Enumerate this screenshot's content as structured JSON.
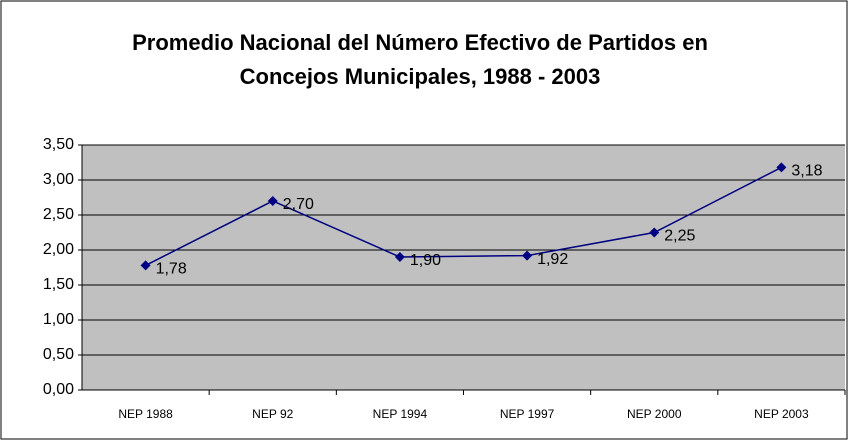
{
  "chart_data": {
    "type": "line",
    "title": "Promedio Nacional del Número Efectivo de Partidos en Concejos Municipales, 1988 - 2003",
    "categories": [
      "NEP 1988",
      "NEP 92",
      "NEP 1994",
      "NEP 1997",
      "NEP  2000",
      "NEP 2003"
    ],
    "series": [
      {
        "color": "#000080",
        "values": [
          1.78,
          2.7,
          1.9,
          1.92,
          2.25,
          3.18
        ],
        "value_labels": [
          "1,78",
          "2,70",
          "1,90",
          "1,92",
          "2,25",
          "3,18"
        ]
      }
    ],
    "ylim": [
      0,
      3.5
    ],
    "yticks": [
      {
        "value": 0,
        "label": "0,00"
      },
      {
        "value": 0.5,
        "label": "0,50"
      },
      {
        "value": 1,
        "label": "1,00"
      },
      {
        "value": 1.5,
        "label": "1,50"
      },
      {
        "value": 2,
        "label": "2,00"
      },
      {
        "value": 2.5,
        "label": "2,50"
      },
      {
        "value": 3,
        "label": "3,00"
      },
      {
        "value": 3.5,
        "label": "3,50"
      }
    ],
    "grid": true
  }
}
